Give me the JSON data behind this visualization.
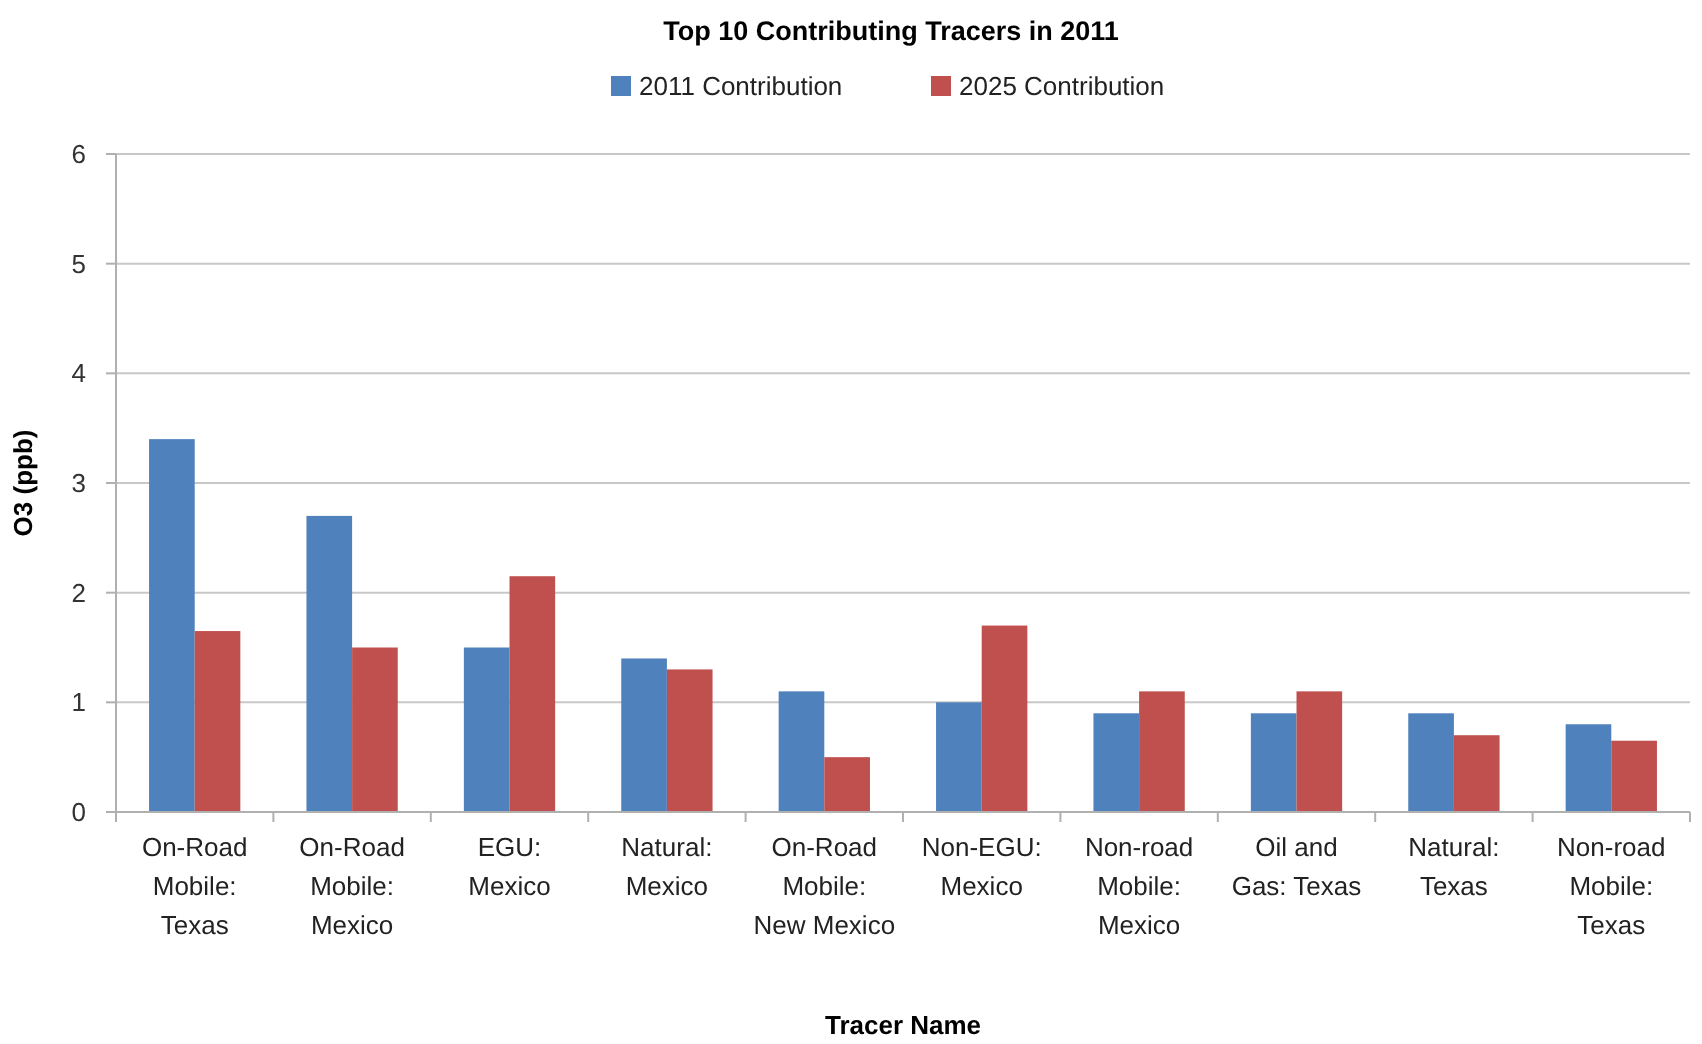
{
  "chart_data": {
    "type": "bar",
    "title": "Top 10 Contributing Tracers in 2011",
    "xlabel": "Tracer Name",
    "ylabel": "O3 (ppb)",
    "categories": [
      "On-Road Mobile: Texas",
      "On-Road Mobile: Mexico",
      "EGU: Mexico",
      "Natural: Mexico",
      "On-Road Mobile: New Mexico",
      "Non-EGU: Mexico",
      "Non-road Mobile: Mexico",
      "Oil and Gas: Texas",
      "Natural: Texas",
      "Non-road Mobile: Texas"
    ],
    "series": [
      {
        "name": "2011 Contribution",
        "color": "#4f81bd",
        "values": [
          3.4,
          2.7,
          1.5,
          1.4,
          1.1,
          1.0,
          0.9,
          0.9,
          0.9,
          0.8
        ]
      },
      {
        "name": "2025 Contribution",
        "color": "#c0504d",
        "values": [
          1.65,
          1.5,
          2.15,
          1.3,
          0.5,
          1.7,
          1.1,
          1.1,
          0.7,
          0.65
        ]
      }
    ],
    "ylim": [
      0,
      6
    ],
    "yticks": [
      0,
      1,
      2,
      3,
      4,
      5,
      6
    ],
    "grid": "y",
    "legend": "top"
  }
}
